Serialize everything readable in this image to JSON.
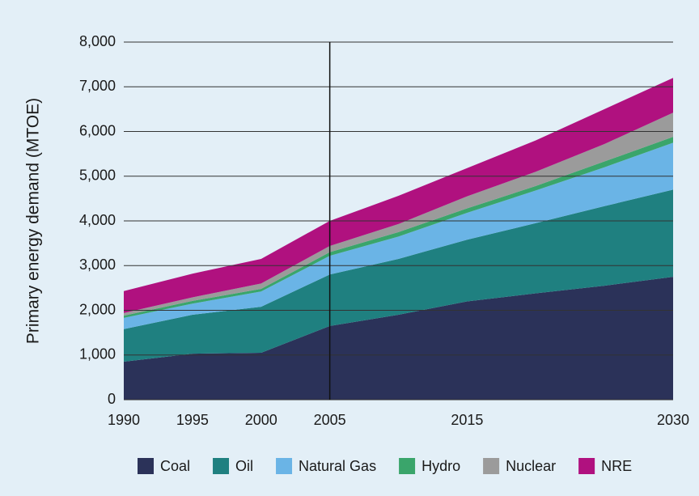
{
  "chart_data": {
    "type": "stacked_area",
    "y_label": "Primary energy demand (MTOE)",
    "x": [
      1990,
      1995,
      2000,
      2005,
      2010,
      2015,
      2020,
      2025,
      2030
    ],
    "series": [
      {
        "name": "Coal",
        "color": "#2b3259",
        "values": [
          850,
          1030,
          1050,
          1650,
          1900,
          2200,
          2380,
          2550,
          2750
        ]
      },
      {
        "name": "Oil",
        "color": "#1f8080",
        "values": [
          730,
          870,
          1030,
          1150,
          1250,
          1380,
          1570,
          1780,
          1950
        ]
      },
      {
        "name": "Natural Gas",
        "color": "#6ab4e6",
        "values": [
          250,
          250,
          340,
          420,
          500,
          600,
          730,
          870,
          1050
        ]
      },
      {
        "name": "Hydro",
        "color": "#3aa56b",
        "values": [
          50,
          60,
          60,
          80,
          100,
          100,
          100,
          130,
          130
        ]
      },
      {
        "name": "Nuclear",
        "color": "#9b9b9b",
        "values": [
          60,
          80,
          120,
          140,
          180,
          270,
          320,
          390,
          540
        ]
      },
      {
        "name": "NRE",
        "color": "#b0117f",
        "values": [
          490,
          530,
          550,
          560,
          630,
          630,
          700,
          780,
          780
        ]
      }
    ],
    "xlim": [
      1990,
      2030
    ],
    "xticks": [
      1990,
      1995,
      2000,
      2005,
      2015,
      2030
    ],
    "ylim": [
      0,
      8000
    ],
    "yticks": [
      0,
      {
        "value": 1000,
        "label": "1,000"
      },
      {
        "value": 2000,
        "label": "2,000"
      },
      {
        "value": 3000,
        "label": "3,000"
      },
      {
        "value": 4000,
        "label": "4,000"
      },
      {
        "value": 5000,
        "label": "5,000"
      },
      {
        "value": 6000,
        "label": "6,000"
      },
      {
        "value": 7000,
        "label": "7,000"
      },
      {
        "value": 8000,
        "label": "8,000"
      }
    ],
    "grid": true,
    "vline": 2005,
    "legend": "bottom"
  }
}
